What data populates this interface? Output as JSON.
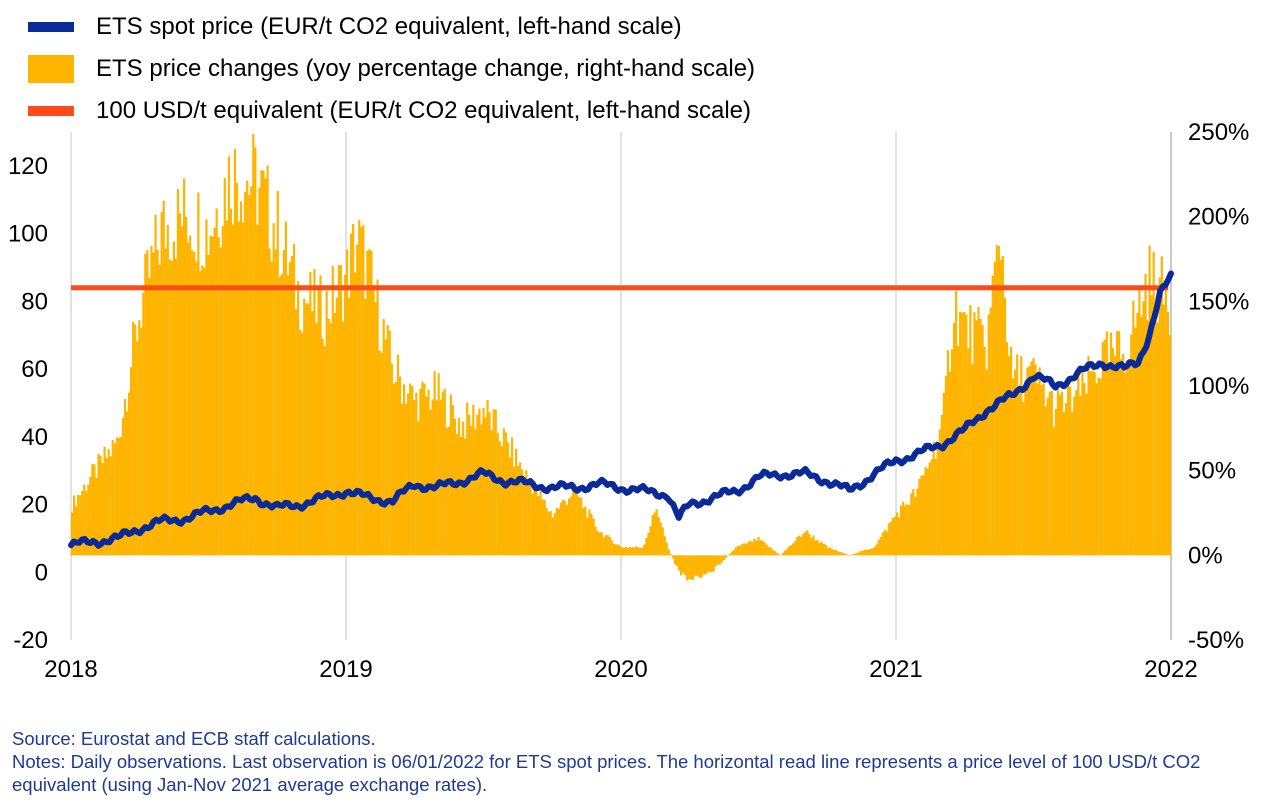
{
  "chart_data": {
    "type": "bar+line",
    "title": "",
    "legend": [
      {
        "label": "ETS spot price (EUR/t CO2 equivalent, left-hand scale)",
        "kind": "line",
        "color": "#0a2a9a"
      },
      {
        "label": "ETS price changes (yoy percentage change, right-hand scale)",
        "kind": "bar",
        "color": "#ffb400"
      },
      {
        "label": "100 USD/t equivalent (EUR/t CO2 equivalent, left-hand scale)",
        "kind": "line",
        "color": "#ff4a1a"
      }
    ],
    "x_axis": {
      "range": [
        2018.0,
        2022.0
      ],
      "tick_labels": [
        "2018",
        "2019",
        "2020",
        "2021",
        "2022"
      ]
    },
    "y_left": {
      "range": [
        -20,
        130
      ],
      "ticks": [
        -20,
        0,
        20,
        40,
        60,
        80,
        100,
        120
      ],
      "tick_labels": [
        "-20",
        "0",
        "20",
        "40",
        "60",
        "80",
        "100",
        "120"
      ]
    },
    "y_right": {
      "range": [
        -50,
        250
      ],
      "ticks": [
        -50,
        0,
        50,
        100,
        150,
        200,
        250
      ],
      "tick_labels": [
        "-50%",
        "0%",
        "50%",
        "100%",
        "150%",
        "200%",
        "250%"
      ]
    },
    "grid": "vertical at year ticks",
    "series": [
      {
        "name": "ETS spot price",
        "axis": "left",
        "x": [
          2018.0,
          2018.08,
          2018.17,
          2018.25,
          2018.33,
          2018.42,
          2018.5,
          2018.58,
          2018.67,
          2018.75,
          2018.83,
          2018.92,
          2019.0,
          2019.08,
          2019.17,
          2019.25,
          2019.33,
          2019.42,
          2019.5,
          2019.58,
          2019.67,
          2019.75,
          2019.83,
          2019.92,
          2020.0,
          2020.08,
          2020.17,
          2020.21,
          2020.25,
          2020.33,
          2020.42,
          2020.5,
          2020.58,
          2020.67,
          2020.75,
          2020.83,
          2020.92,
          2021.0,
          2021.08,
          2021.17,
          2021.25,
          2021.33,
          2021.42,
          2021.5,
          2021.58,
          2021.67,
          2021.75,
          2021.83,
          2021.88,
          2021.92,
          2021.96,
          2022.0
        ],
        "values": [
          8,
          9,
          10,
          13,
          15,
          16,
          18,
          20,
          22,
          19,
          20,
          22,
          24,
          22,
          21,
          26,
          25,
          27,
          29,
          27,
          26,
          25,
          25,
          26,
          25,
          24,
          23,
          16,
          20,
          22,
          24,
          28,
          29,
          29,
          27,
          24,
          29,
          33,
          35,
          38,
          42,
          48,
          52,
          58,
          55,
          59,
          62,
          60,
          62,
          70,
          82,
          87
        ]
      },
      {
        "name": "ETS price changes",
        "axis": "right",
        "x": [
          2018.0,
          2018.08,
          2018.17,
          2018.25,
          2018.33,
          2018.42,
          2018.5,
          2018.58,
          2018.67,
          2018.75,
          2018.83,
          2018.92,
          2019.0,
          2019.04,
          2019.08,
          2019.17,
          2019.25,
          2019.33,
          2019.42,
          2019.5,
          2019.58,
          2019.67,
          2019.75,
          2019.83,
          2019.92,
          2020.0,
          2020.08,
          2020.13,
          2020.17,
          2020.21,
          2020.25,
          2020.33,
          2020.42,
          2020.5,
          2020.58,
          2020.67,
          2020.75,
          2020.83,
          2020.92,
          2021.0,
          2021.08,
          2021.17,
          2021.21,
          2021.25,
          2021.33,
          2021.38,
          2021.42,
          2021.5,
          2021.58,
          2021.67,
          2021.75,
          2021.83,
          2021.92,
          2022.0
        ],
        "values": [
          30,
          50,
          70,
          150,
          200,
          210,
          200,
          235,
          230,
          200,
          160,
          150,
          170,
          195,
          175,
          115,
          95,
          100,
          80,
          90,
          70,
          45,
          25,
          40,
          15,
          5,
          5,
          30,
          5,
          -10,
          -15,
          -10,
          5,
          10,
          0,
          15,
          5,
          0,
          5,
          25,
          40,
          80,
          155,
          140,
          130,
          200,
          110,
          110,
          90,
          100,
          120,
          125,
          170,
          155
        ]
      },
      {
        "name": "100 USD/t equivalent",
        "axis": "left",
        "x": [
          2018.0,
          2021.99
        ],
        "values": [
          84,
          84
        ]
      }
    ]
  },
  "source_note": "Source: Eurostat and ECB staff calculations.",
  "notes": "Notes: Daily observations. Last observation is 06/01/2022 for ETS spot prices. The horizontal read line represents a price level of 100 USD/t CO2 equivalent (using Jan-Nov 2021 average exchange rates)."
}
